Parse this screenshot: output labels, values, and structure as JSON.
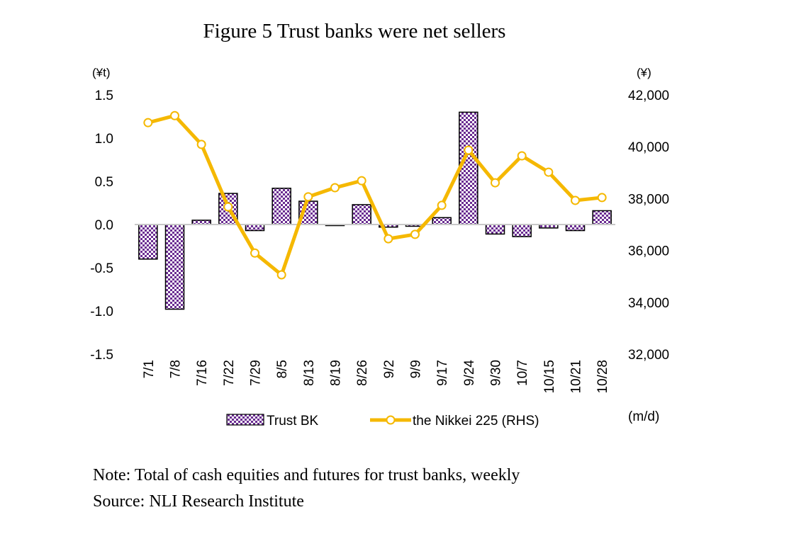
{
  "title": "Figure 5 Trust banks were net sellers",
  "note": "Note: Total of cash equities and futures for trust banks, weekly",
  "source": "Source: NLI Research Institute",
  "chart_data": {
    "type": "bar+line",
    "title": "Figure 5 Trust banks were net sellers",
    "left_unit": "(¥t)",
    "right_unit": "(¥)",
    "x_unit": "(m/d)",
    "categories": [
      "7/1",
      "7/8",
      "7/16",
      "7/22",
      "7/29",
      "8/5",
      "8/13",
      "8/19",
      "8/26",
      "9/2",
      "9/9",
      "9/17",
      "9/24",
      "9/30",
      "10/7",
      "10/15",
      "10/21",
      "10/28"
    ],
    "left_ylim": [
      -1.5,
      1.5
    ],
    "left_ticks": [
      "1.5",
      "1.0",
      "0.5",
      "0.0",
      "-0.5",
      "-1.0",
      "-1.5"
    ],
    "left_tick_values": [
      1.5,
      1.0,
      0.5,
      0.0,
      -0.5,
      -1.0,
      -1.5
    ],
    "right_ylim": [
      32000,
      42000
    ],
    "right_ticks": [
      "42,000",
      "40,000",
      "38,000",
      "36,000",
      "34,000",
      "32,000"
    ],
    "right_tick_values": [
      42000,
      40000,
      38000,
      36000,
      34000,
      32000
    ],
    "grid": false,
    "legend_position": "bottom",
    "series": [
      {
        "name": "Trust BK",
        "type": "bar",
        "axis": "left",
        "color": "#6a2c91",
        "values": [
          -0.4,
          -0.98,
          0.05,
          0.36,
          -0.07,
          0.42,
          0.27,
          -0.01,
          0.23,
          -0.03,
          -0.02,
          0.08,
          1.3,
          -0.11,
          -0.14,
          -0.04,
          -0.07,
          0.16
        ]
      },
      {
        "name": "the Nikkei 225 (RHS)",
        "type": "line",
        "axis": "right",
        "color": "#f5b800",
        "values": [
          40930,
          41200,
          40090,
          37680,
          35900,
          35060,
          38070,
          38420,
          38690,
          36450,
          36620,
          37740,
          39870,
          38610,
          39650,
          39020,
          37930,
          38040
        ]
      }
    ]
  }
}
